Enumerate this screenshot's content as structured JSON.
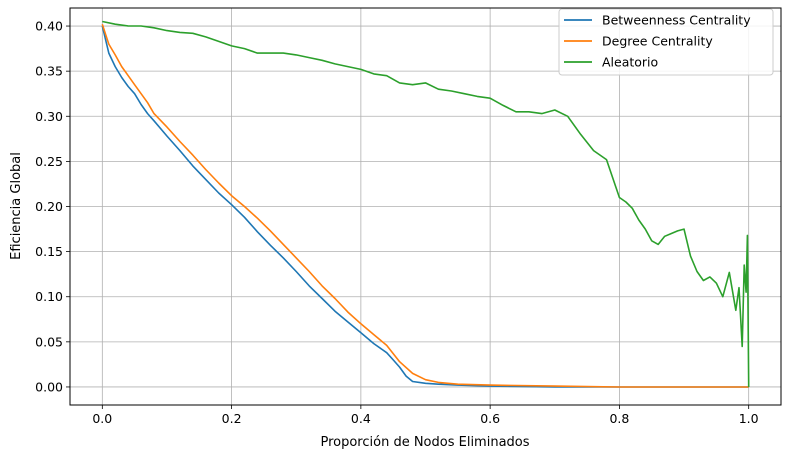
{
  "chart_data": {
    "type": "line",
    "title": "",
    "xlabel": "Proporción de Nodos Eliminados",
    "ylabel": "Eficiencia Global",
    "xlim": [
      -0.05,
      1.05
    ],
    "ylim": [
      -0.02,
      0.42
    ],
    "xticks": [
      0.0,
      0.2,
      0.4,
      0.6,
      0.8,
      1.0
    ],
    "xtick_labels": [
      "0.0",
      "0.2",
      "0.4",
      "0.6",
      "0.8",
      "1.0"
    ],
    "yticks": [
      0.0,
      0.05,
      0.1,
      0.15,
      0.2,
      0.25,
      0.3,
      0.35,
      0.4
    ],
    "ytick_labels": [
      "0.00",
      "0.05",
      "0.10",
      "0.15",
      "0.20",
      "0.25",
      "0.30",
      "0.35",
      "0.40"
    ],
    "grid": true,
    "legend_position": "top-right",
    "series": [
      {
        "name": "Betweenness Centrality",
        "color": "#1f77b4",
        "x": [
          0.0,
          0.01,
          0.02,
          0.03,
          0.04,
          0.05,
          0.06,
          0.07,
          0.08,
          0.1,
          0.12,
          0.14,
          0.16,
          0.18,
          0.2,
          0.22,
          0.24,
          0.26,
          0.28,
          0.3,
          0.32,
          0.34,
          0.36,
          0.38,
          0.4,
          0.42,
          0.44,
          0.45,
          0.46,
          0.47,
          0.48,
          0.5,
          0.52,
          0.55,
          0.6,
          0.7,
          0.8,
          0.9,
          1.0
        ],
        "y": [
          0.4,
          0.37,
          0.355,
          0.343,
          0.333,
          0.325,
          0.313,
          0.303,
          0.295,
          0.278,
          0.262,
          0.245,
          0.23,
          0.215,
          0.202,
          0.188,
          0.172,
          0.157,
          0.143,
          0.128,
          0.112,
          0.098,
          0.084,
          0.072,
          0.06,
          0.048,
          0.038,
          0.03,
          0.022,
          0.012,
          0.006,
          0.004,
          0.003,
          0.002,
          0.001,
          0.0,
          0.0,
          0.0,
          0.0
        ]
      },
      {
        "name": "Degree Centrality",
        "color": "#ff7f0e",
        "x": [
          0.0,
          0.01,
          0.02,
          0.03,
          0.04,
          0.05,
          0.06,
          0.07,
          0.08,
          0.1,
          0.12,
          0.14,
          0.16,
          0.18,
          0.2,
          0.22,
          0.24,
          0.26,
          0.28,
          0.3,
          0.32,
          0.34,
          0.36,
          0.38,
          0.4,
          0.42,
          0.44,
          0.46,
          0.48,
          0.5,
          0.52,
          0.55,
          0.6,
          0.7,
          0.8,
          0.9,
          1.0
        ],
        "y": [
          0.402,
          0.38,
          0.368,
          0.355,
          0.345,
          0.335,
          0.325,
          0.315,
          0.303,
          0.288,
          0.272,
          0.257,
          0.241,
          0.226,
          0.212,
          0.2,
          0.187,
          0.173,
          0.158,
          0.143,
          0.128,
          0.112,
          0.098,
          0.083,
          0.07,
          0.058,
          0.046,
          0.028,
          0.015,
          0.008,
          0.005,
          0.003,
          0.002,
          0.001,
          0.0,
          0.0,
          0.0
        ]
      },
      {
        "name": "Aleatorio",
        "color": "#2ca02c",
        "x": [
          0.0,
          0.02,
          0.04,
          0.06,
          0.08,
          0.1,
          0.12,
          0.14,
          0.16,
          0.18,
          0.2,
          0.22,
          0.24,
          0.26,
          0.28,
          0.3,
          0.32,
          0.34,
          0.36,
          0.38,
          0.4,
          0.42,
          0.44,
          0.46,
          0.48,
          0.5,
          0.52,
          0.54,
          0.56,
          0.58,
          0.6,
          0.62,
          0.64,
          0.66,
          0.68,
          0.7,
          0.72,
          0.74,
          0.76,
          0.78,
          0.8,
          0.81,
          0.82,
          0.83,
          0.84,
          0.85,
          0.86,
          0.87,
          0.88,
          0.89,
          0.9,
          0.91,
          0.92,
          0.93,
          0.94,
          0.95,
          0.96,
          0.97,
          0.98,
          0.985,
          0.99,
          0.993,
          0.996,
          0.998,
          1.0
        ],
        "y": [
          0.405,
          0.402,
          0.4,
          0.4,
          0.398,
          0.395,
          0.393,
          0.392,
          0.388,
          0.383,
          0.378,
          0.375,
          0.37,
          0.37,
          0.37,
          0.368,
          0.365,
          0.362,
          0.358,
          0.355,
          0.352,
          0.347,
          0.345,
          0.337,
          0.335,
          0.337,
          0.33,
          0.328,
          0.325,
          0.322,
          0.32,
          0.312,
          0.305,
          0.305,
          0.303,
          0.307,
          0.3,
          0.28,
          0.262,
          0.252,
          0.21,
          0.205,
          0.198,
          0.185,
          0.175,
          0.162,
          0.158,
          0.167,
          0.17,
          0.173,
          0.175,
          0.145,
          0.128,
          0.118,
          0.122,
          0.115,
          0.1,
          0.127,
          0.085,
          0.11,
          0.045,
          0.135,
          0.105,
          0.168,
          0.0
        ]
      }
    ]
  }
}
